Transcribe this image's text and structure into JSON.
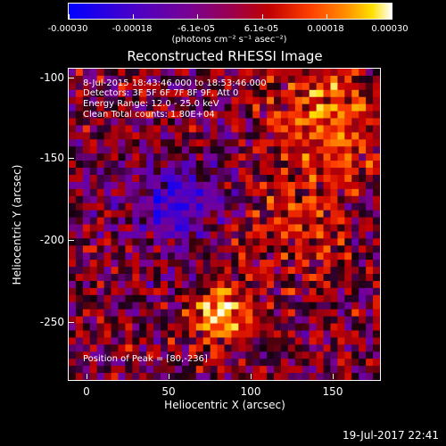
{
  "title": "Reconstructed RHESSI Image",
  "colorbar": {
    "labels": [
      "-0.00030",
      "-0.00018",
      "-6.1e-05",
      "6.1e-05",
      "0.00018",
      "0.00030"
    ],
    "units": "(photons cm⁻² s⁻¹ asec⁻²)",
    "range": [
      -0.0003,
      0.0003
    ]
  },
  "annotations": {
    "time": "8-Jul-2015 18:43:46.000 to 18:53:46.000",
    "detectors": "Detectors: 3F 5F 6F 7F 8F 9F, Att 0",
    "energy": "Energy Range: 12.0 - 25.0 keV",
    "clean": "Clean    Total counts: 1.80E+04",
    "peak": "Position of Peak = [80,-236]"
  },
  "axes": {
    "x_title": "Heliocentric X (arcsec)",
    "y_title": "Heliocentric Y (arcsec)",
    "x_ticks": [
      "0",
      "50",
      "100",
      "150"
    ],
    "y_ticks": [
      "-100",
      "-150",
      "-200",
      "-250"
    ],
    "x_range": [
      -10,
      180
    ],
    "y_range": [
      -285,
      -95
    ]
  },
  "footer": "19-Jul-2017 22:41",
  "colors": {
    "background": "#000000",
    "foreground": "#ffffff"
  }
}
